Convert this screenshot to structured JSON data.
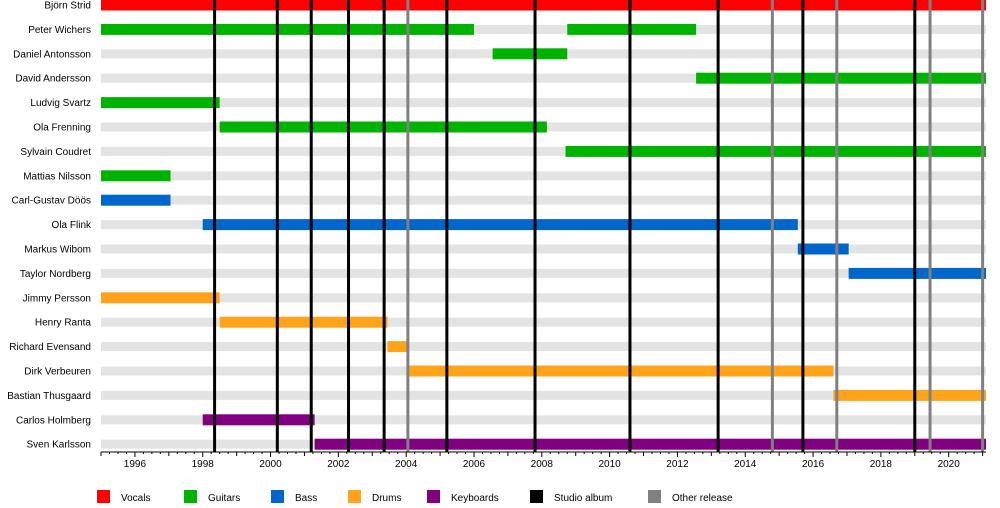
{
  "chart_data": {
    "type": "timeline",
    "x_axis": {
      "range": [
        1995,
        2021.1
      ],
      "ticks": [
        1996,
        1998,
        2000,
        2002,
        2004,
        2006,
        2008,
        2010,
        2012,
        2014,
        2016,
        2018,
        2020
      ],
      "minor_ticks_per_year": 4
    },
    "members": [
      {
        "name": "Björn Strid",
        "bars": [
          {
            "role": "Vocals",
            "start": 1995.0,
            "end": 2021.1
          }
        ]
      },
      {
        "name": "Peter Wichers",
        "bars": [
          {
            "role": "Guitars",
            "start": 1995.0,
            "end": 2006.0
          },
          {
            "role": "Guitars",
            "start": 2008.75,
            "end": 2012.55
          }
        ]
      },
      {
        "name": "Daniel Antonsson",
        "bars": [
          {
            "role": "Guitars",
            "start": 2006.55,
            "end": 2008.75
          }
        ]
      },
      {
        "name": "David Andersson",
        "bars": [
          {
            "role": "Guitars",
            "start": 2012.55,
            "end": 2021.1
          }
        ]
      },
      {
        "name": "Ludvig Svartz",
        "bars": [
          {
            "role": "Guitars",
            "start": 1995.0,
            "end": 1998.5
          }
        ]
      },
      {
        "name": "Ola Frenning",
        "bars": [
          {
            "role": "Guitars",
            "start": 1998.5,
            "end": 2008.15
          }
        ]
      },
      {
        "name": "Sylvain Coudret",
        "bars": [
          {
            "role": "Guitars",
            "start": 2008.7,
            "end": 2021.1
          }
        ]
      },
      {
        "name": "Mattias Nilsson",
        "bars": [
          {
            "role": "Guitars",
            "start": 1995.0,
            "end": 1997.05
          }
        ]
      },
      {
        "name": "Carl-Gustav Döös",
        "bars": [
          {
            "role": "Bass",
            "start": 1995.0,
            "end": 1997.05
          }
        ]
      },
      {
        "name": "Ola Flink",
        "bars": [
          {
            "role": "Bass",
            "start": 1998.0,
            "end": 2015.55
          }
        ]
      },
      {
        "name": "Markus Wibom",
        "bars": [
          {
            "role": "Bass",
            "start": 2015.55,
            "end": 2017.05
          }
        ]
      },
      {
        "name": "Taylor Nordberg",
        "bars": [
          {
            "role": "Bass",
            "start": 2017.05,
            "end": 2021.1
          }
        ]
      },
      {
        "name": "Jimmy Persson",
        "bars": [
          {
            "role": "Drums",
            "start": 1995.0,
            "end": 1998.5
          }
        ]
      },
      {
        "name": "Henry Ranta",
        "bars": [
          {
            "role": "Drums",
            "start": 1998.5,
            "end": 2003.45
          }
        ]
      },
      {
        "name": "Richard Evensand",
        "bars": [
          {
            "role": "Drums",
            "start": 2003.45,
            "end": 2004.05
          }
        ]
      },
      {
        "name": "Dirk Verbeuren",
        "bars": [
          {
            "role": "Drums",
            "start": 2004.05,
            "end": 2016.6
          }
        ]
      },
      {
        "name": "Bastian Thusgaard",
        "bars": [
          {
            "role": "Drums",
            "start": 2016.6,
            "end": 2021.1
          }
        ]
      },
      {
        "name": "Carlos Holmberg",
        "bars": [
          {
            "role": "Keyboards",
            "start": 1998.0,
            "end": 2001.3
          }
        ]
      },
      {
        "name": "Sven Karlsson",
        "bars": [
          {
            "role": "Keyboards",
            "start": 2001.3,
            "end": 2021.1
          }
        ]
      }
    ],
    "releases": [
      {
        "type": "Studio album",
        "year": 1998.35
      },
      {
        "type": "Studio album",
        "year": 2000.2
      },
      {
        "type": "Studio album",
        "year": 2001.2
      },
      {
        "type": "Studio album",
        "year": 2002.3
      },
      {
        "type": "Studio album",
        "year": 2003.35
      },
      {
        "type": "Other release",
        "year": 2004.05
      },
      {
        "type": "Studio album",
        "year": 2005.2
      },
      {
        "type": "Studio album",
        "year": 2007.8
      },
      {
        "type": "Studio album",
        "year": 2010.6
      },
      {
        "type": "Studio album",
        "year": 2013.2
      },
      {
        "type": "Other release",
        "year": 2014.8
      },
      {
        "type": "Studio album",
        "year": 2015.7
      },
      {
        "type": "Other release",
        "year": 2016.7
      },
      {
        "type": "Studio album",
        "year": 2019.0
      },
      {
        "type": "Other release",
        "year": 2019.45
      },
      {
        "type": "Other release",
        "year": 2021.0
      }
    ],
    "legend": [
      {
        "label": "Vocals",
        "color": "#ff0000"
      },
      {
        "label": "Guitars",
        "color": "#00b300"
      },
      {
        "label": "Bass",
        "color": "#0066cc"
      },
      {
        "label": "Drums",
        "color": "#ffa31a"
      },
      {
        "label": "Keyboards",
        "color": "#800080"
      },
      {
        "label": "Studio album",
        "color": "#000000"
      },
      {
        "label": "Other release",
        "color": "#808080"
      }
    ],
    "legend_position": "bottom",
    "row_stripe_color": "#e3e3e3",
    "axis_color": "#000000"
  }
}
